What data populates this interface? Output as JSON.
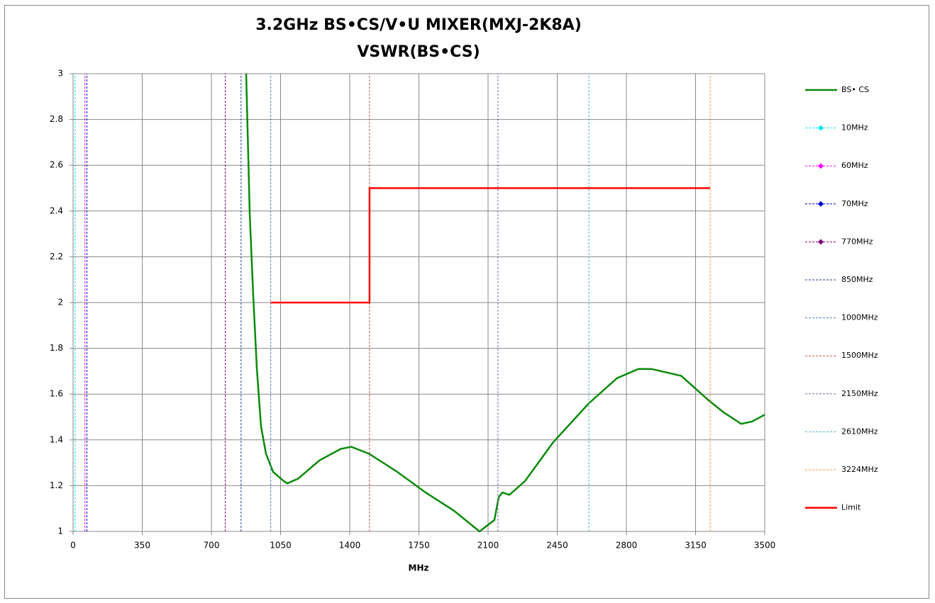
{
  "chart_data": {
    "type": "line",
    "title": [
      "3.2GHz BS•CS/V•U MIXER(MXJ-2K8A)",
      "VSWR(BS•CS)"
    ],
    "x_label": "MHz",
    "xlim": [
      0,
      3500
    ],
    "xticks": [
      0,
      350,
      700,
      1050,
      1400,
      1750,
      2100,
      2450,
      2800,
      3150,
      3500
    ],
    "ylim": [
      1,
      3
    ],
    "yticks": [
      1,
      1.2,
      1.4,
      1.6,
      1.8,
      2,
      2.2,
      2.4,
      2.6,
      2.8,
      3
    ],
    "grid": true,
    "legend": "right",
    "series": [
      {
        "name": "BS• CS",
        "color": "#0a8a0a",
        "x": [
          876,
          894,
          912,
          930,
          951,
          976,
          1012,
          1066,
          1084,
          1138,
          1246,
          1353,
          1407,
          1497,
          1641,
          1784,
          1928,
          2057,
          2132,
          2154,
          2172,
          2208,
          2287,
          2430,
          2610,
          2753,
          2861,
          2926,
          3077,
          3220,
          3292,
          3381,
          3435,
          3500
        ],
        "values": [
          3.0,
          2.39,
          2.02,
          1.71,
          1.46,
          1.34,
          1.26,
          1.22,
          1.21,
          1.23,
          1.31,
          1.36,
          1.37,
          1.34,
          1.26,
          1.17,
          1.09,
          1.0,
          1.05,
          1.15,
          1.17,
          1.16,
          1.22,
          1.39,
          1.56,
          1.67,
          1.71,
          1.71,
          1.68,
          1.57,
          1.52,
          1.47,
          1.48,
          1.51
        ]
      },
      {
        "name": "10MHz",
        "color": "#00e5ee",
        "dashed": true,
        "marker": true,
        "x": [
          10,
          10
        ],
        "values": [
          1,
          3
        ]
      },
      {
        "name": "60MHz",
        "color": "#ff00ff",
        "dashed": true,
        "marker": true,
        "x": [
          60,
          60
        ],
        "values": [
          1,
          3
        ]
      },
      {
        "name": "70MHz",
        "color": "#0000cc",
        "dashed": true,
        "marker": true,
        "x": [
          70,
          70
        ],
        "values": [
          1,
          3
        ]
      },
      {
        "name": "770MHz",
        "color": "#7f007f",
        "dashed": true,
        "marker": true,
        "x": [
          770,
          770
        ],
        "values": [
          1,
          3
        ]
      },
      {
        "name": "850MHz",
        "color": "#1f3f99",
        "dashed": true,
        "x": [
          850,
          850
        ],
        "values": [
          1,
          3
        ]
      },
      {
        "name": "1000MHz",
        "color": "#4f81bd",
        "dashed": true,
        "x": [
          1000,
          1000
        ],
        "values": [
          1,
          3
        ]
      },
      {
        "name": "1500MHz",
        "color": "#c0504d",
        "dashed": true,
        "x": [
          1500,
          1500
        ],
        "values": [
          1,
          3
        ]
      },
      {
        "name": "2150MHz",
        "color": "#8064a2",
        "dashed": true,
        "x": [
          2150,
          2150
        ],
        "values": [
          1,
          3
        ]
      },
      {
        "name": "2610MHz",
        "color": "#4bacc6",
        "dashed": true,
        "x": [
          2610,
          2610
        ],
        "values": [
          1,
          3
        ]
      },
      {
        "name": "3224MHz",
        "color": "#f79646",
        "dashed": true,
        "x": [
          3224,
          3224
        ],
        "values": [
          1,
          3
        ]
      },
      {
        "name": "Limit",
        "color": "#ff0000",
        "x": [
          1000,
          1500,
          1500,
          3224
        ],
        "values": [
          2,
          2,
          2.5,
          2.5
        ]
      }
    ]
  }
}
